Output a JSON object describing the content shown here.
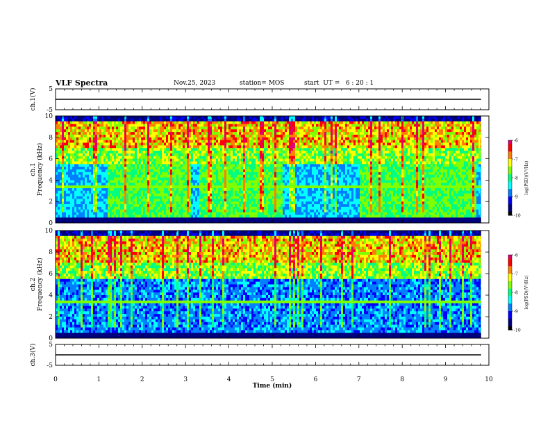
{
  "header": {
    "title": "VLF Spectra",
    "date": "Nov.25, 2023",
    "station": "station= MOS",
    "start_ut": "start  UT =   6 : 20 : 1"
  },
  "colors": {
    "spectrum": [
      "#000000",
      "#000080",
      "#0000ff",
      "#0080ff",
      "#00ffff",
      "#00ff80",
      "#80ff00",
      "#ffff00",
      "#ff8000",
      "#ff0000",
      "#e00070"
    ],
    "trace": "#000000",
    "frame": "#000000"
  },
  "chart_data": [
    {
      "type": "line",
      "ylabel": "ch.1(V)",
      "ylim": [
        -5,
        5
      ],
      "yticks": [
        "5",
        "-5"
      ],
      "xlim": [
        0,
        10
      ],
      "description_level": 0,
      "series": [
        {
          "values": [
            0
          ]
        }
      ]
    },
    {
      "type": "heatmap",
      "ylabel": "ch.1\nFrequency (kHz)",
      "ylim": [
        0,
        10
      ],
      "yticks": [
        "0",
        "2",
        "4",
        "6",
        "8",
        "10"
      ],
      "xlim": [
        0,
        10
      ],
      "colorbar": {
        "label": "log(PSD)(V²/Hz)",
        "range": [
          -10,
          -6
        ],
        "ticks": [
          "-6",
          "-7",
          "-8",
          "-9",
          "-10"
        ]
      },
      "data_end_min": 9.82
    },
    {
      "type": "heatmap",
      "ylabel": "ch.2\nFrequency (kHz)",
      "ylim": [
        0,
        10
      ],
      "yticks": [
        "0",
        "2",
        "4",
        "6",
        "8",
        "10"
      ],
      "xlim": [
        0,
        10
      ],
      "colorbar": {
        "label": "log(PSD)(V²/Hz)",
        "range": [
          -10,
          -6
        ],
        "ticks": [
          "-6",
          "-7",
          "-8",
          "-9",
          "-10"
        ]
      },
      "data_end_min": 9.82
    },
    {
      "type": "line",
      "ylabel": "ch.3(V)",
      "ylim": [
        -5,
        5
      ],
      "yticks": [
        "5",
        "-5"
      ],
      "xlim": [
        0,
        10
      ],
      "series": [
        {
          "values": [
            0
          ]
        }
      ]
    }
  ],
  "xaxis": {
    "label": "Time (min)",
    "ticks": [
      "0",
      "1",
      "2",
      "3",
      "4",
      "5",
      "6",
      "7",
      "8",
      "9",
      "10"
    ]
  }
}
